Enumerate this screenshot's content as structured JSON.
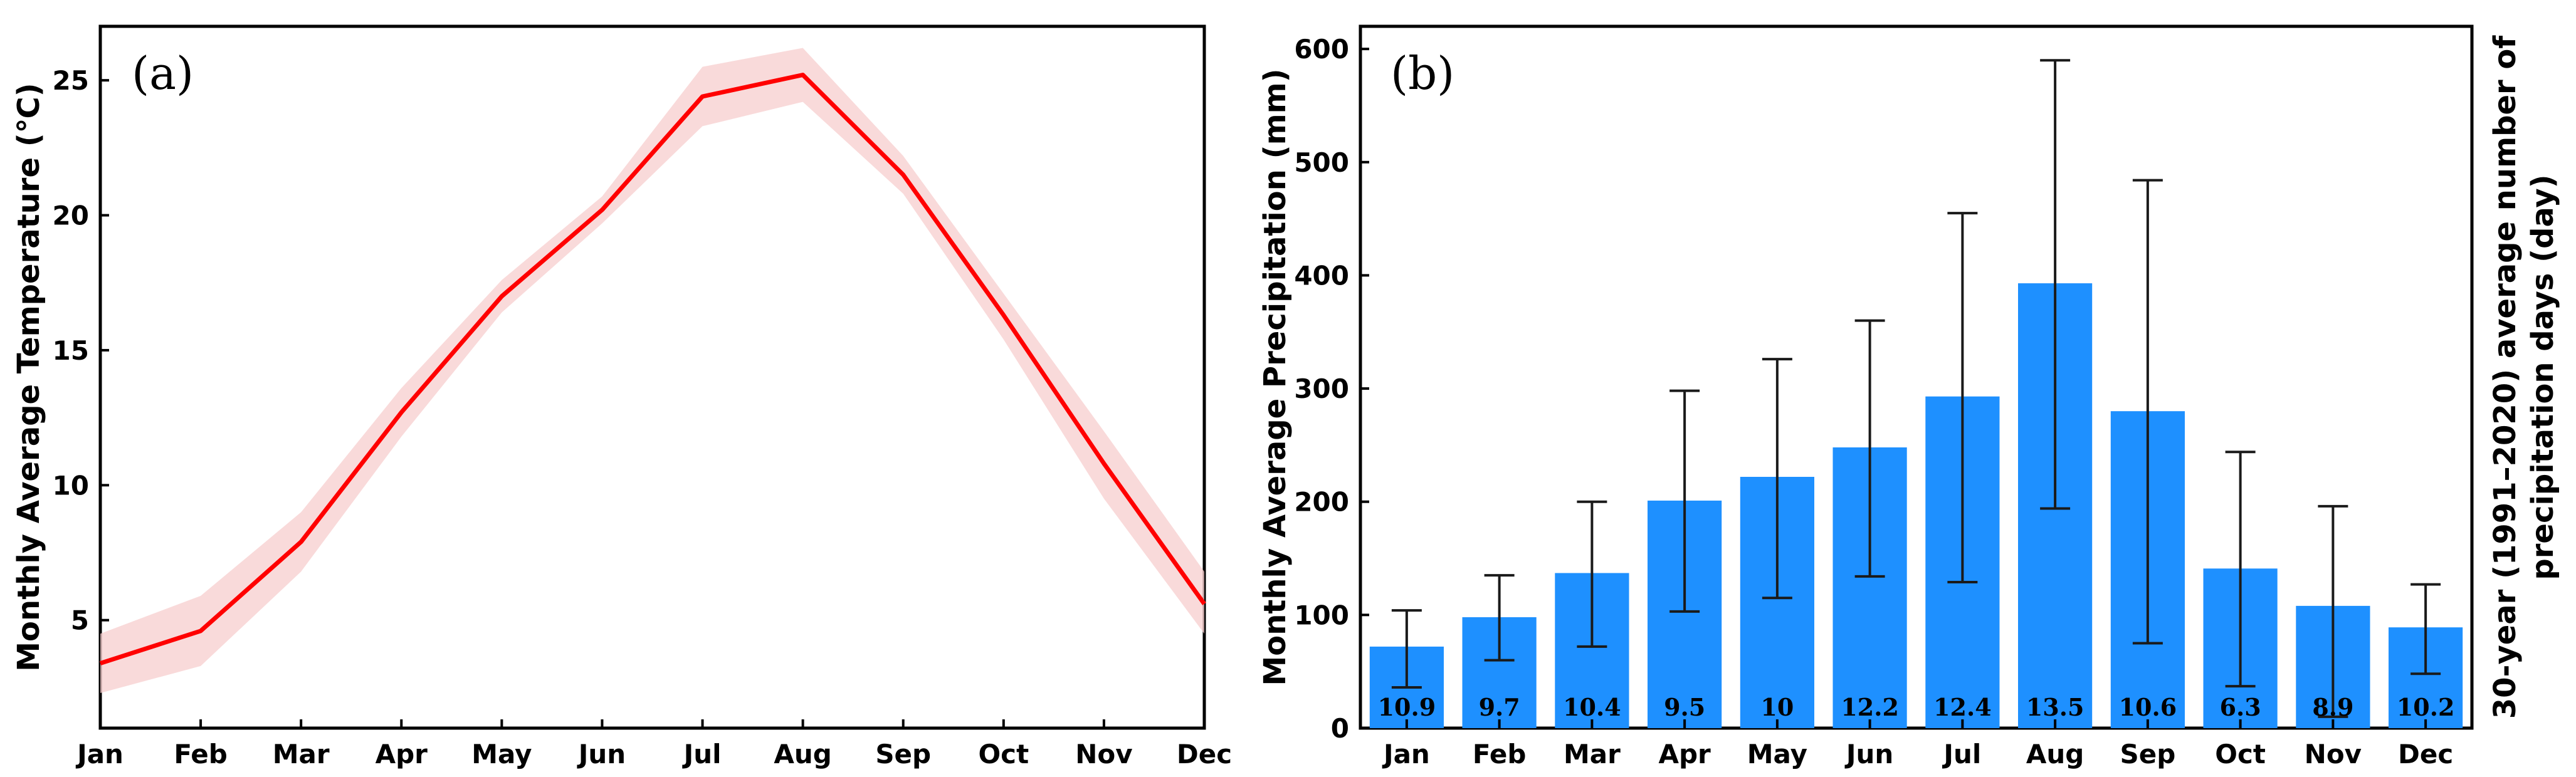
{
  "chart_data": [
    {
      "type": "line",
      "panel_label": "(a)",
      "categories": [
        "Jan",
        "Feb",
        "Mar",
        "Apr",
        "May",
        "Jun",
        "Jul",
        "Aug",
        "Sep",
        "Oct",
        "Nov",
        "Dec"
      ],
      "series": [
        {
          "name": "Monthly Average Temperature",
          "values": [
            3.4,
            4.6,
            7.9,
            12.7,
            17.0,
            20.2,
            24.4,
            25.2,
            21.5,
            16.3,
            10.8,
            5.6
          ],
          "lower": [
            2.3,
            3.3,
            6.8,
            11.8,
            16.4,
            19.7,
            23.3,
            24.2,
            20.8,
            15.4,
            9.5,
            4.5
          ],
          "upper": [
            4.5,
            5.9,
            9.0,
            13.6,
            17.6,
            20.7,
            25.5,
            26.2,
            22.2,
            17.1,
            12.0,
            6.8
          ],
          "color": "#ff0000",
          "band_color": "#f7cdcd"
        }
      ],
      "title": "",
      "xlabel": "",
      "ylabel": "Monthly Average Temperature (℃)",
      "ylim": [
        1,
        27
      ],
      "yticks": [
        "5",
        "10",
        "15",
        "20",
        "25"
      ]
    },
    {
      "type": "bar",
      "panel_label": "(b)",
      "categories": [
        "Jan",
        "Feb",
        "Mar",
        "Apr",
        "May",
        "Jun",
        "Jul",
        "Aug",
        "Sep",
        "Oct",
        "Nov",
        "Dec"
      ],
      "values": [
        72,
        98,
        137,
        201,
        222,
        248,
        293,
        393,
        280,
        141,
        108,
        89
      ],
      "error_low": [
        36,
        60,
        72,
        103,
        115,
        134,
        129,
        194,
        75,
        37,
        10,
        48
      ],
      "error_high": [
        104,
        135,
        200,
        298,
        326,
        360,
        455,
        590,
        484,
        244,
        196,
        127
      ],
      "bar_labels": [
        "10.9",
        "9.7",
        "10.4",
        "9.5",
        "10",
        "12.2",
        "12.4",
        "13.5",
        "10.6",
        "6.3",
        "8.9",
        "10.2"
      ],
      "bar_color": "#1e90ff",
      "title": "",
      "xlabel": "",
      "ylabel": "Monthly Average Precipitation (mm)",
      "ylabel_right_line1": "30-year (1991–2020) average number of",
      "ylabel_right_line2": "precipitation days (day)",
      "ylim": [
        0,
        620
      ],
      "yticks": [
        "0",
        "100",
        "200",
        "300",
        "400",
        "500",
        "600"
      ]
    }
  ]
}
